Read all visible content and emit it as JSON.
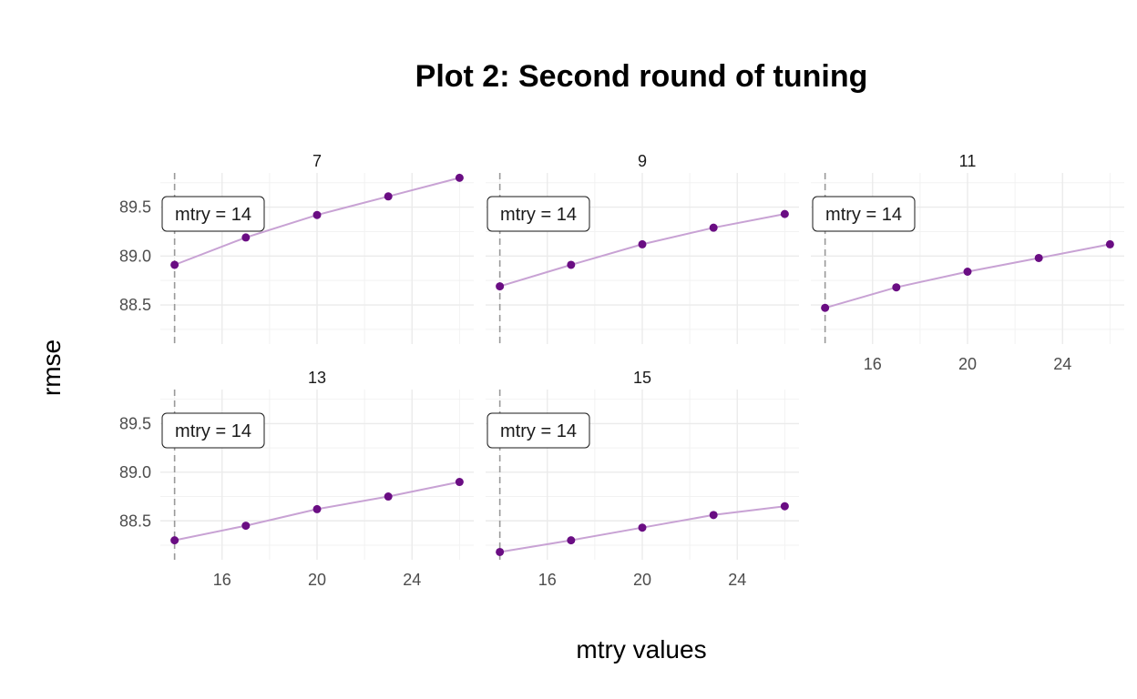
{
  "chart_data": {
    "type": "line",
    "title": "Plot 2: Second round of tuning",
    "xlabel": "mtry values",
    "ylabel": "rmse",
    "xlim": [
      13.4,
      26.6
    ],
    "ylim": [
      88.1,
      89.85
    ],
    "x_ticks": [
      16,
      20,
      24
    ],
    "y_ticks": [
      88.5,
      89.0,
      89.5
    ],
    "y_tick_labels": [
      "88.5",
      "89.0",
      "89.5"
    ],
    "grid": true,
    "vline_x": 14,
    "annotation_label": "mtry = 14",
    "line_color": "#C8A2D4",
    "point_color": "#6A0D83",
    "vline_color": "#999999",
    "x": [
      14,
      17,
      20,
      23,
      26
    ],
    "facets": [
      {
        "strip": "7",
        "values": [
          88.91,
          89.19,
          89.42,
          89.61,
          89.8
        ]
      },
      {
        "strip": "9",
        "values": [
          88.69,
          88.91,
          89.12,
          89.29,
          89.43
        ]
      },
      {
        "strip": "11",
        "values": [
          88.47,
          88.68,
          88.84,
          88.98,
          89.12
        ]
      },
      {
        "strip": "13",
        "values": [
          88.3,
          88.45,
          88.62,
          88.75,
          88.9
        ]
      },
      {
        "strip": "15",
        "values": [
          88.18,
          88.3,
          88.43,
          88.56,
          88.65
        ]
      }
    ]
  }
}
